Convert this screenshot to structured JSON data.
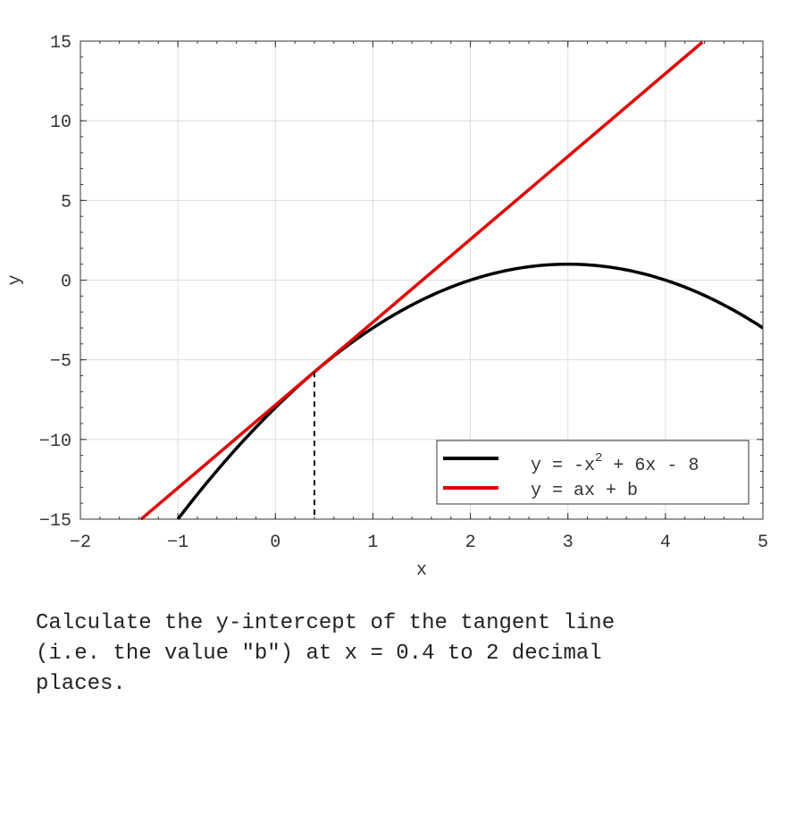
{
  "chart_data": {
    "type": "line",
    "xlabel": "x",
    "ylabel": "y",
    "xlim": [
      -2,
      5
    ],
    "ylim": [
      -15,
      15
    ],
    "x_ticks": [
      -2,
      -1,
      0,
      1,
      2,
      3,
      4,
      5
    ],
    "y_ticks": [
      -15,
      -10,
      -5,
      0,
      5,
      10,
      15
    ],
    "grid": true,
    "legend_position": "bottom-right",
    "series": [
      {
        "name": "y = -x^2 + 6x - 8",
        "legend_main": "y = -x",
        "legend_sup": "2",
        "legend_rest": " + 6x - 8",
        "color": "#000000",
        "function": "-x^2 + 6x - 8",
        "x_range": [
          -1,
          5
        ],
        "points": [
          [
            -1,
            -15
          ],
          [
            0,
            -8
          ],
          [
            0.4,
            -5.76
          ],
          [
            1,
            -3
          ],
          [
            2,
            0
          ],
          [
            3,
            1
          ],
          [
            4,
            0
          ],
          [
            5,
            -3
          ]
        ]
      },
      {
        "name": "y = ax + b",
        "color": "#e00000",
        "slope": 5.2,
        "intercept": -7.84,
        "x_range": [
          -1.38,
          4.38
        ],
        "points": [
          [
            -1.38,
            -15
          ],
          [
            4.38,
            15
          ]
        ]
      }
    ],
    "marker": {
      "x": 0.4,
      "y": -5.76,
      "style": "dashed"
    }
  },
  "question": {
    "lines": [
      "Calculate the y-intercept of the tangent line",
      "(i.e. the value \"b\") at x = 0.4 to 2 decimal",
      "places."
    ]
  }
}
